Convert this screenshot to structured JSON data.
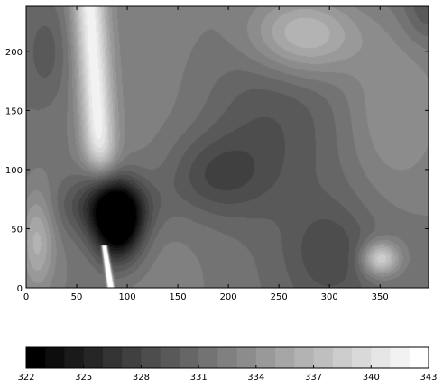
{
  "chart_data": [
    {
      "type": "heatmap",
      "x_ticks": [
        0,
        50,
        100,
        150,
        200,
        250,
        300,
        350
      ],
      "y_ticks": [
        0,
        50,
        100,
        150,
        200
      ],
      "xlim": [
        0,
        398
      ],
      "ylim": [
        0,
        238
      ],
      "grid": false,
      "colormap": "gray",
      "value_range": [
        322,
        343
      ],
      "features": [
        {
          "x": 82,
          "y": 8,
          "value": 343
        },
        {
          "x": 85,
          "y": 20,
          "value": 342
        },
        {
          "x": 90,
          "y": 60,
          "value": 322
        },
        {
          "x": 80,
          "y": 200,
          "value": 341
        },
        {
          "x": 60,
          "y": 220,
          "value": 340
        },
        {
          "x": 180,
          "y": 95,
          "value": 329
        },
        {
          "x": 270,
          "y": 210,
          "value": 338
        },
        {
          "x": 350,
          "y": 25,
          "value": 340
        },
        {
          "x": 20,
          "y": 40,
          "value": 336
        },
        {
          "x": 130,
          "y": 45,
          "value": 333
        }
      ]
    },
    {
      "type": "colorbar",
      "tick_labels": [
        "322",
        "325",
        "328",
        "331",
        "334",
        "337",
        "340",
        "343"
      ],
      "bins": [
        322,
        323,
        324,
        325,
        326,
        327,
        328,
        329,
        330,
        331,
        332,
        333,
        334,
        335,
        336,
        337,
        338,
        339,
        340,
        341,
        342
      ]
    }
  ]
}
